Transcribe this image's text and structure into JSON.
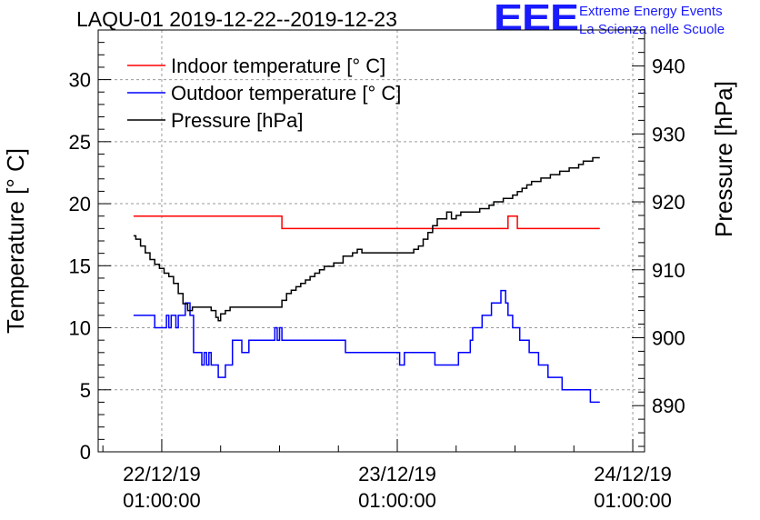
{
  "header": {
    "title": "LAQU-01 2019-12-22--2019-12-23",
    "logo_text": "EEE",
    "logo_line1": "Extreme Energy Events",
    "logo_line2": "La Scienza nelle Scuole"
  },
  "chart_data": {
    "type": "line",
    "title": "LAQU-01 2019-12-22--2019-12-23",
    "ylabel": "Temperature [° C]",
    "y2label": "Pressure [hPa]",
    "xlabel": "",
    "xlim": [
      -0.27,
      2.05
    ],
    "ylim": [
      0,
      34.0
    ],
    "y2lim": [
      883.2,
      945.3
    ],
    "yticks": [
      0,
      5,
      10,
      15,
      20,
      25,
      30
    ],
    "y2ticks": [
      890,
      900,
      910,
      920,
      930,
      940
    ],
    "xticks": [
      {
        "value": 0,
        "date": "22/12/19",
        "time": "01:00:00"
      },
      {
        "value": 1,
        "date": "23/12/19",
        "time": "01:00:00"
      },
      {
        "value": 2,
        "date": "24/12/19",
        "time": "01:00:00"
      }
    ],
    "grid": true,
    "legend_position": "top-left",
    "series": [
      {
        "name": "Indoor temperature [° C]",
        "axis": "left",
        "color": "#ff0000",
        "x": [
          -0.12,
          0.5,
          0.51,
          0.94,
          1.46,
          1.47,
          1.5,
          1.51,
          1.86
        ],
        "y": [
          19,
          19,
          18,
          18,
          18,
          19,
          19,
          18,
          18
        ]
      },
      {
        "name": "Outdoor temperature [° C]",
        "axis": "left",
        "color": "#0000ff",
        "x": [
          -0.12,
          -0.04,
          -0.03,
          0.0,
          0.02,
          0.03,
          0.04,
          0.06,
          0.07,
          0.09,
          0.1,
          0.11,
          0.12,
          0.135,
          0.15,
          0.17,
          0.18,
          0.19,
          0.2,
          0.21,
          0.23,
          0.24,
          0.25,
          0.27,
          0.28,
          0.3,
          0.32,
          0.34,
          0.36,
          0.37,
          0.39,
          0.41,
          0.43,
          0.46,
          0.48,
          0.49,
          0.5,
          0.51,
          0.53,
          0.55,
          0.6,
          0.77,
          0.78,
          0.8,
          1.0,
          1.01,
          1.02,
          1.03,
          1.1,
          1.15,
          1.16,
          1.25,
          1.26,
          1.28,
          1.3,
          1.31,
          1.32,
          1.34,
          1.36,
          1.38,
          1.4,
          1.42,
          1.44,
          1.46,
          1.47,
          1.48,
          1.49,
          1.5,
          1.52,
          1.54,
          1.56,
          1.58,
          1.6,
          1.62,
          1.64,
          1.66,
          1.68,
          1.7,
          1.72,
          1.74,
          1.76,
          1.78,
          1.8,
          1.82,
          1.84,
          1.85,
          1.86
        ],
        "y": [
          11,
          11,
          10,
          10,
          11,
          10,
          11,
          10,
          11,
          11,
          12,
          12,
          11,
          8,
          8,
          7,
          8,
          7,
          8,
          7,
          7,
          6,
          6,
          7,
          7,
          9,
          9,
          8,
          8,
          9,
          9,
          9,
          9,
          9,
          10,
          9,
          10,
          9,
          9,
          9,
          9,
          9,
          8,
          8,
          8,
          7,
          7,
          8,
          8,
          8,
          7,
          7,
          8,
          8,
          8,
          9,
          10,
          10,
          11,
          11,
          12,
          12,
          13,
          12,
          11,
          11,
          10,
          10,
          9,
          9,
          8,
          8,
          7,
          7,
          6,
          6,
          6,
          5,
          5,
          5,
          5,
          5,
          5,
          4,
          4,
          4,
          4
        ]
      },
      {
        "name": "Pressure [hPa]",
        "axis": "right",
        "color": "#000000",
        "x": [
          -0.12,
          -0.11,
          -0.09,
          -0.07,
          -0.05,
          -0.03,
          -0.01,
          0.01,
          0.03,
          0.05,
          0.07,
          0.09,
          0.11,
          0.13,
          0.15,
          0.17,
          0.19,
          0.21,
          0.23,
          0.24,
          0.25,
          0.27,
          0.29,
          0.31,
          0.33,
          0.35,
          0.37,
          0.39,
          0.41,
          0.43,
          0.45,
          0.47,
          0.49,
          0.51,
          0.53,
          0.55,
          0.57,
          0.59,
          0.61,
          0.63,
          0.65,
          0.67,
          0.69,
          0.71,
          0.73,
          0.75,
          0.77,
          0.79,
          0.81,
          0.83,
          0.85,
          0.87,
          0.89,
          0.91,
          0.93,
          0.95,
          0.97,
          0.99,
          1.01,
          1.03,
          1.05,
          1.07,
          1.09,
          1.11,
          1.13,
          1.15,
          1.17,
          1.19,
          1.21,
          1.23,
          1.25,
          1.27,
          1.29,
          1.31,
          1.33,
          1.35,
          1.37,
          1.39,
          1.41,
          1.43,
          1.45,
          1.47,
          1.49,
          1.51,
          1.53,
          1.55,
          1.57,
          1.59,
          1.61,
          1.63,
          1.65,
          1.67,
          1.69,
          1.71,
          1.73,
          1.75,
          1.77,
          1.79,
          1.81,
          1.83,
          1.86
        ],
        "y": [
          915.0,
          914.5,
          913.5,
          912.5,
          911.5,
          910.8,
          910.2,
          909.5,
          909.0,
          908.0,
          906.5,
          905.0,
          904.0,
          904.5,
          904.5,
          904.5,
          904.5,
          904.0,
          903.0,
          902.5,
          903.5,
          904.0,
          904.5,
          904.5,
          904.5,
          904.5,
          904.5,
          904.5,
          904.5,
          904.5,
          904.5,
          904.5,
          904.5,
          905.5,
          906.5,
          907.0,
          907.5,
          908.0,
          908.5,
          909.0,
          909.5,
          910.0,
          910.5,
          910.5,
          911.0,
          911.0,
          912.0,
          912.0,
          912.5,
          913.0,
          912.5,
          912.5,
          912.5,
          912.5,
          912.5,
          912.5,
          912.5,
          912.5,
          912.5,
          912.5,
          912.5,
          913.0,
          913.5,
          914.5,
          915.5,
          916.5,
          917.5,
          917.5,
          918.5,
          917.5,
          918.0,
          918.5,
          918.5,
          918.5,
          918.5,
          919.0,
          919.0,
          919.5,
          920.0,
          920.0,
          920.5,
          920.5,
          921.0,
          921.5,
          922.0,
          922.5,
          923.0,
          923.0,
          923.5,
          923.5,
          924.0,
          924.0,
          924.5,
          924.5,
          925.0,
          925.0,
          925.5,
          926.0,
          926.0,
          926.5,
          926.5
        ]
      }
    ]
  }
}
